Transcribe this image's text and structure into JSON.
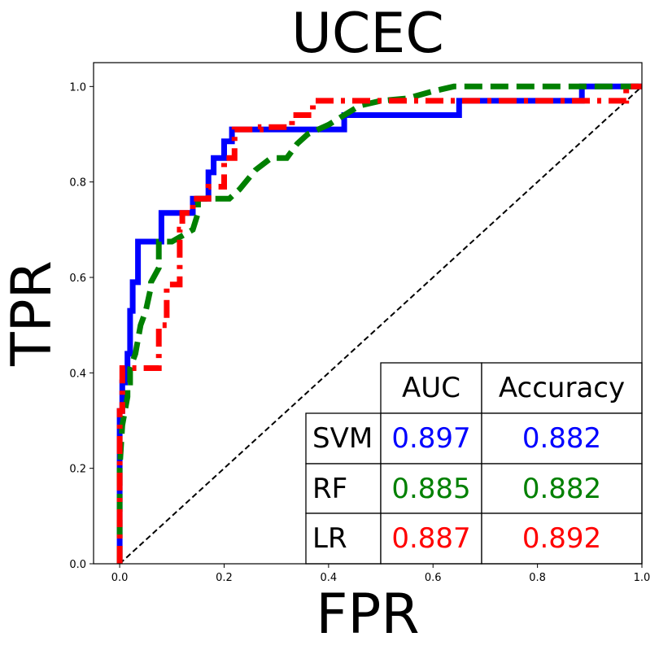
{
  "chart_data": {
    "type": "line",
    "title": "UCEC",
    "xlabel": "FPR",
    "ylabel": "TPR",
    "xlim": [
      -0.05,
      1.0
    ],
    "ylim": [
      0.0,
      1.05
    ],
    "xticks": [
      0.0,
      0.2,
      0.4,
      0.6,
      0.8,
      1.0
    ],
    "xtick_labels": [
      "0.0",
      "0.2",
      "0.4",
      "0.6",
      "0.8",
      "1.0"
    ],
    "yticks": [
      0.0,
      0.2,
      0.4,
      0.6,
      0.8,
      1.0
    ],
    "ytick_labels": [
      "0.0",
      "0.2",
      "0.4",
      "0.6",
      "0.8",
      "1.0"
    ],
    "grid": false,
    "diagonal": {
      "x": [
        0,
        1
      ],
      "y": [
        0,
        1
      ],
      "color": "#000000",
      "style": "dashed"
    },
    "series": [
      {
        "color": "#0000ff",
        "style": "solid",
        "x": [
          0.0,
          0.0,
          0.005,
          0.005,
          0.01,
          0.01,
          0.015,
          0.015,
          0.02,
          0.02,
          0.025,
          0.025,
          0.035,
          0.035,
          0.08,
          0.08,
          0.14,
          0.14,
          0.17,
          0.17,
          0.18,
          0.18,
          0.2,
          0.2,
          0.215,
          0.215,
          0.43,
          0.43,
          0.65,
          0.65,
          0.885,
          0.885,
          1.0
        ],
        "y": [
          0.0,
          0.32,
          0.32,
          0.38,
          0.38,
          0.41,
          0.41,
          0.44,
          0.44,
          0.53,
          0.53,
          0.59,
          0.59,
          0.675,
          0.675,
          0.735,
          0.735,
          0.765,
          0.765,
          0.82,
          0.82,
          0.85,
          0.85,
          0.885,
          0.885,
          0.91,
          0.91,
          0.94,
          0.94,
          0.97,
          0.97,
          1.0,
          1.0
        ]
      },
      {
        "color": "#008000",
        "style": "dashed",
        "x": [
          0.0,
          0.0,
          0.005,
          0.01,
          0.015,
          0.015,
          0.02,
          0.02,
          0.03,
          0.04,
          0.05,
          0.06,
          0.06,
          0.075,
          0.075,
          0.1,
          0.1,
          0.14,
          0.15,
          0.15,
          0.21,
          0.23,
          0.26,
          0.29,
          0.31,
          0.32,
          0.34,
          0.36,
          0.4,
          0.43,
          0.46,
          0.5,
          0.55,
          0.6,
          0.64,
          0.68,
          1.0
        ],
        "y": [
          0.0,
          0.2,
          0.29,
          0.32,
          0.35,
          0.38,
          0.38,
          0.41,
          0.44,
          0.5,
          0.53,
          0.58,
          0.59,
          0.62,
          0.675,
          0.675,
          0.675,
          0.7,
          0.735,
          0.765,
          0.765,
          0.785,
          0.825,
          0.85,
          0.85,
          0.85,
          0.88,
          0.9,
          0.92,
          0.94,
          0.96,
          0.97,
          0.975,
          0.99,
          1.0,
          1.0,
          1.0
        ]
      },
      {
        "color": "#ff0000",
        "style": "dashdot",
        "x": [
          0.0,
          0.0,
          0.005,
          0.005,
          0.075,
          0.075,
          0.09,
          0.09,
          0.115,
          0.115,
          0.12,
          0.12,
          0.14,
          0.14,
          0.17,
          0.17,
          0.2,
          0.2,
          0.22,
          0.22,
          0.27,
          0.27,
          0.33,
          0.33,
          0.37,
          0.37,
          0.97,
          0.97,
          1.0
        ],
        "y": [
          0.0,
          0.32,
          0.32,
          0.41,
          0.41,
          0.5,
          0.5,
          0.585,
          0.585,
          0.7,
          0.7,
          0.735,
          0.735,
          0.765,
          0.765,
          0.79,
          0.79,
          0.85,
          0.85,
          0.91,
          0.91,
          0.915,
          0.915,
          0.94,
          0.94,
          0.97,
          0.97,
          1.0,
          1.0
        ]
      }
    ],
    "table": {
      "headers": [
        "AUC",
        "Accuracy"
      ],
      "rows": [
        {
          "label": "SVM",
          "auc": "0.897",
          "accuracy": "0.882",
          "color": "#0000ff"
        },
        {
          "label": "RF",
          "auc": "0.885",
          "accuracy": "0.882",
          "color": "#008000"
        },
        {
          "label": "LR",
          "auc": "0.887",
          "accuracy": "0.892",
          "color": "#ff0000"
        }
      ]
    }
  }
}
